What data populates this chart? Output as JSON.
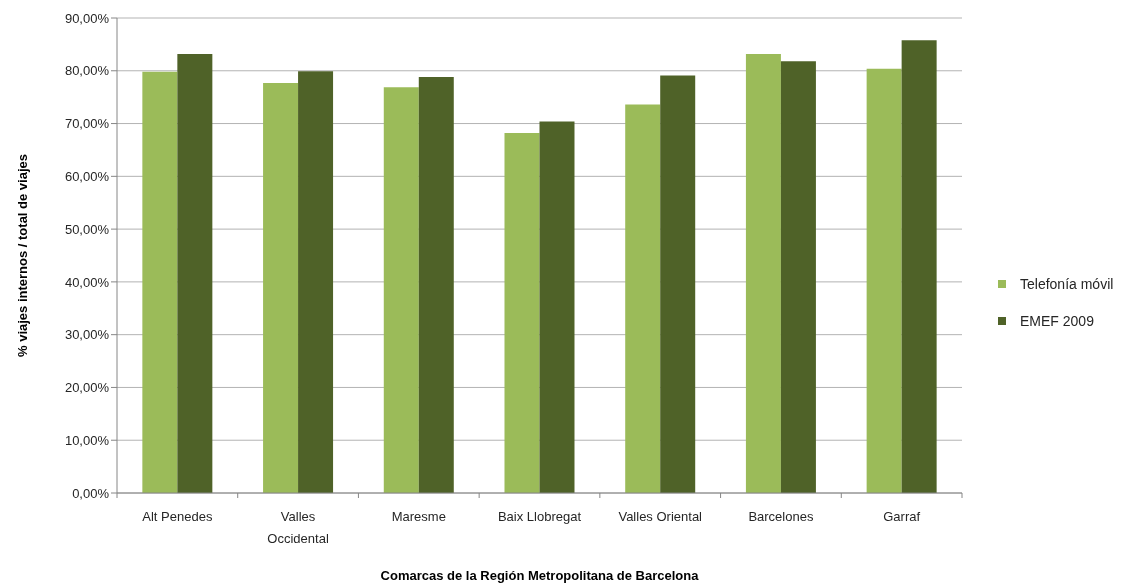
{
  "chart_data": {
    "type": "bar",
    "xlabel": "Comarcas de la Región Metropolitana de Barcelona",
    "ylabel": "% viajes internos / total de viajes",
    "categories": [
      "Alt Penedes",
      "Valles Occidental",
      "Maresme",
      "Baix Llobregat",
      "Valles Oriental",
      "Barcelones",
      "Garraf"
    ],
    "series": [
      {
        "name": "Telefonía móvil",
        "color": "#9bbb59",
        "values": [
          79.8,
          77.7,
          76.9,
          68.2,
          73.6,
          83.2,
          80.4
        ]
      },
      {
        "name": "EMEF 2009",
        "color": "#4f6228",
        "values": [
          83.2,
          79.9,
          78.8,
          70.4,
          79.1,
          81.8,
          85.8
        ]
      }
    ],
    "ylim": [
      0,
      90
    ],
    "yticks": [
      {
        "value": 0,
        "label": "0,00%"
      },
      {
        "value": 10,
        "label": "10,00%"
      },
      {
        "value": 20,
        "label": "20,00%"
      },
      {
        "value": 30,
        "label": "30,00%"
      },
      {
        "value": 40,
        "label": "40,00%"
      },
      {
        "value": 50,
        "label": "50,00%"
      },
      {
        "value": 60,
        "label": "60,00%"
      },
      {
        "value": 70,
        "label": "70,00%"
      },
      {
        "value": 80,
        "label": "80,00%"
      },
      {
        "value": 90,
        "label": "90,00%"
      }
    ],
    "grid": "y",
    "legend": "right"
  }
}
